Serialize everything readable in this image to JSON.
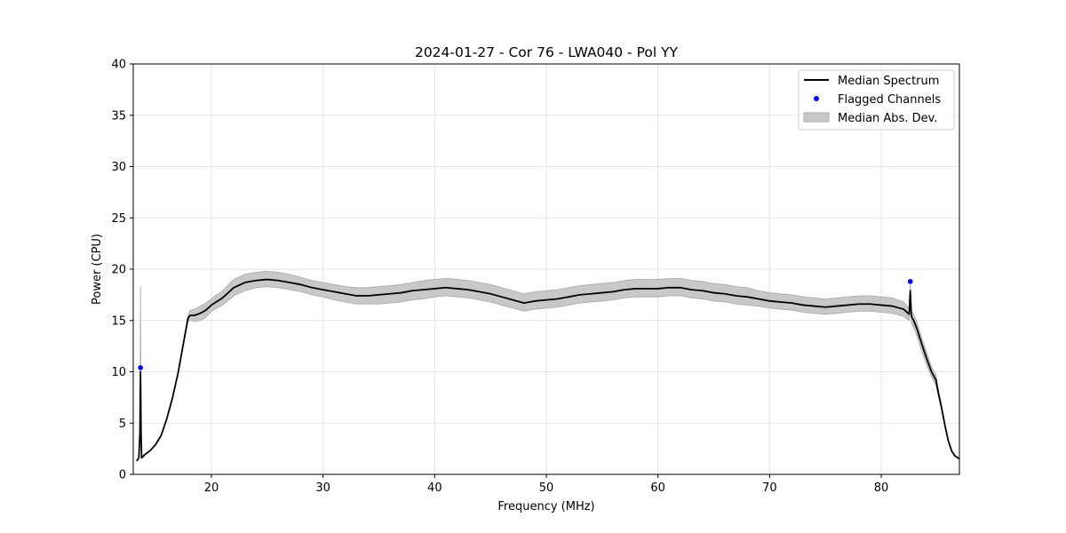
{
  "chart_data": {
    "type": "line",
    "title": "2024-01-27 - Cor 76 - LWA040 - Pol YY",
    "xlabel": "Frequency (MHz)",
    "ylabel": "Power (CPU)",
    "xlim": [
      13.0,
      87.0
    ],
    "ylim": [
      0,
      40
    ],
    "xticks": [
      20,
      30,
      40,
      50,
      60,
      70,
      80
    ],
    "yticks": [
      0,
      5,
      10,
      15,
      20,
      25,
      30,
      35,
      40
    ],
    "grid": true,
    "legend_position": "top-right",
    "legend": [
      {
        "label": "Median Spectrum",
        "kind": "line",
        "color": "#000000"
      },
      {
        "label": "Flagged Channels",
        "kind": "marker",
        "color": "#0000ff"
      },
      {
        "label": "Median Abs. Dev.",
        "kind": "band",
        "color": "#c8c8c8"
      }
    ],
    "series": [
      {
        "name": "Median Spectrum",
        "x": [
          13.3,
          13.5,
          13.6,
          13.65,
          13.7,
          13.75,
          13.85,
          14.0,
          14.5,
          15.0,
          15.5,
          16.0,
          16.5,
          17.0,
          17.5,
          17.9,
          18.1,
          18.5,
          19.0,
          19.5,
          20.0,
          21.0,
          22.0,
          23.0,
          24.0,
          25.0,
          26.0,
          27.0,
          28.0,
          29.0,
          30.0,
          31.0,
          32.0,
          33.0,
          34.0,
          35.0,
          36.0,
          37.0,
          38.0,
          39.0,
          40.0,
          41.0,
          42.0,
          43.0,
          44.0,
          45.0,
          46.0,
          47.0,
          48.0,
          48.5,
          49.0,
          50.0,
          51.0,
          52.0,
          53.0,
          54.0,
          55.0,
          56.0,
          57.0,
          58.0,
          59.0,
          60.0,
          61.0,
          62.0,
          63.0,
          64.0,
          65.0,
          66.0,
          67.0,
          68.0,
          69.0,
          70.0,
          71.0,
          72.0,
          73.0,
          74.0,
          75.0,
          76.0,
          77.0,
          78.0,
          79.0,
          80.0,
          81.0,
          82.0,
          82.5,
          82.6,
          82.7,
          82.9,
          83.2,
          83.6,
          84.0,
          84.5,
          84.9,
          85.1,
          85.4,
          85.7,
          86.0,
          86.3,
          86.6,
          87.0
        ],
        "y": [
          1.3,
          1.6,
          4.0,
          10.0,
          4.0,
          1.6,
          1.7,
          1.9,
          2.3,
          2.9,
          3.8,
          5.4,
          7.4,
          9.8,
          12.8,
          15.2,
          15.5,
          15.5,
          15.7,
          16.0,
          16.5,
          17.2,
          18.2,
          18.7,
          18.9,
          19.0,
          18.9,
          18.7,
          18.5,
          18.2,
          18.0,
          17.8,
          17.6,
          17.4,
          17.4,
          17.5,
          17.6,
          17.7,
          17.9,
          18.0,
          18.1,
          18.2,
          18.1,
          18.0,
          17.8,
          17.6,
          17.3,
          17.0,
          16.7,
          16.8,
          16.9,
          17.0,
          17.1,
          17.3,
          17.5,
          17.6,
          17.7,
          17.8,
          18.0,
          18.1,
          18.1,
          18.1,
          18.2,
          18.2,
          18.0,
          17.9,
          17.7,
          17.6,
          17.4,
          17.3,
          17.1,
          16.9,
          16.8,
          16.7,
          16.5,
          16.4,
          16.3,
          16.4,
          16.5,
          16.6,
          16.6,
          16.5,
          16.4,
          16.1,
          15.6,
          17.9,
          15.4,
          15.0,
          14.2,
          12.8,
          11.5,
          10.0,
          9.2,
          8.0,
          6.5,
          4.8,
          3.3,
          2.3,
          1.8,
          1.5
        ]
      },
      {
        "name": "Flagged Channels",
        "points": [
          {
            "x": 13.65,
            "y": 10.4
          },
          {
            "x": 82.6,
            "y": 18.8
          }
        ]
      },
      {
        "name": "Median Abs. Dev.",
        "x": [
          13.3,
          13.5,
          13.6,
          13.65,
          13.7,
          13.75,
          13.85,
          14.0,
          14.5,
          15.0,
          15.5,
          16.0,
          16.5,
          17.0,
          17.5,
          17.9,
          18.1,
          18.5,
          19.0,
          19.5,
          20.0,
          21.0,
          22.0,
          23.0,
          24.0,
          25.0,
          26.0,
          27.0,
          28.0,
          29.0,
          30.0,
          31.0,
          32.0,
          33.0,
          34.0,
          35.0,
          36.0,
          37.0,
          38.0,
          39.0,
          40.0,
          41.0,
          42.0,
          43.0,
          44.0,
          45.0,
          46.0,
          47.0,
          48.0,
          48.5,
          49.0,
          50.0,
          51.0,
          52.0,
          53.0,
          54.0,
          55.0,
          56.0,
          57.0,
          58.0,
          59.0,
          60.0,
          61.0,
          62.0,
          63.0,
          64.0,
          65.0,
          66.0,
          67.0,
          68.0,
          69.0,
          70.0,
          71.0,
          72.0,
          73.0,
          74.0,
          75.0,
          76.0,
          77.0,
          78.0,
          79.0,
          80.0,
          81.0,
          82.0,
          82.5,
          82.6,
          82.7,
          82.9,
          83.2,
          83.6,
          84.0,
          84.5,
          84.9,
          85.1,
          85.4,
          85.7,
          86.0,
          86.3,
          86.6,
          87.0
        ],
        "lower": [
          1.3,
          1.6,
          3.8,
          9.5,
          3.8,
          1.6,
          1.7,
          1.9,
          2.3,
          2.9,
          3.8,
          5.3,
          7.3,
          9.7,
          12.6,
          14.9,
          15.0,
          14.9,
          15.0,
          15.3,
          15.9,
          16.5,
          17.4,
          17.9,
          18.2,
          18.3,
          18.2,
          18.0,
          17.8,
          17.5,
          17.3,
          17.0,
          16.8,
          16.6,
          16.6,
          16.6,
          16.7,
          16.8,
          17.0,
          17.1,
          17.3,
          17.4,
          17.3,
          17.2,
          17.0,
          16.8,
          16.5,
          16.2,
          15.9,
          16.0,
          16.1,
          16.2,
          16.3,
          16.5,
          16.7,
          16.8,
          16.9,
          17.0,
          17.2,
          17.3,
          17.3,
          17.3,
          17.4,
          17.4,
          17.2,
          17.1,
          16.9,
          16.8,
          16.6,
          16.5,
          16.4,
          16.2,
          16.1,
          16.0,
          15.8,
          15.7,
          15.6,
          15.7,
          15.8,
          15.9,
          15.9,
          15.8,
          15.7,
          15.4,
          15.0,
          16.5,
          14.7,
          14.3,
          13.5,
          12.1,
          10.8,
          9.5,
          8.7,
          7.7,
          6.3,
          4.7,
          3.2,
          2.3,
          1.8,
          1.5
        ],
        "upper": [
          1.3,
          1.6,
          5.0,
          18.3,
          5.0,
          1.6,
          1.7,
          1.9,
          2.3,
          2.9,
          3.8,
          5.5,
          7.5,
          9.9,
          13.0,
          15.5,
          16.0,
          16.1,
          16.4,
          16.7,
          17.1,
          17.9,
          19.0,
          19.5,
          19.7,
          19.8,
          19.7,
          19.5,
          19.2,
          18.9,
          18.7,
          18.5,
          18.3,
          18.2,
          18.2,
          18.3,
          18.4,
          18.5,
          18.7,
          18.9,
          19.0,
          19.1,
          19.0,
          18.9,
          18.7,
          18.5,
          18.2,
          17.9,
          17.6,
          17.7,
          17.8,
          17.9,
          18.0,
          18.2,
          18.4,
          18.5,
          18.6,
          18.7,
          18.9,
          19.0,
          19.0,
          19.0,
          19.1,
          19.1,
          18.9,
          18.8,
          18.6,
          18.5,
          18.3,
          18.2,
          17.9,
          17.7,
          17.6,
          17.5,
          17.3,
          17.2,
          17.1,
          17.2,
          17.3,
          17.4,
          17.4,
          17.3,
          17.2,
          16.8,
          16.2,
          18.6,
          16.0,
          15.6,
          14.8,
          13.4,
          12.1,
          10.5,
          9.7,
          8.4,
          6.8,
          5.0,
          3.4,
          2.4,
          1.8,
          1.5
        ]
      }
    ]
  }
}
